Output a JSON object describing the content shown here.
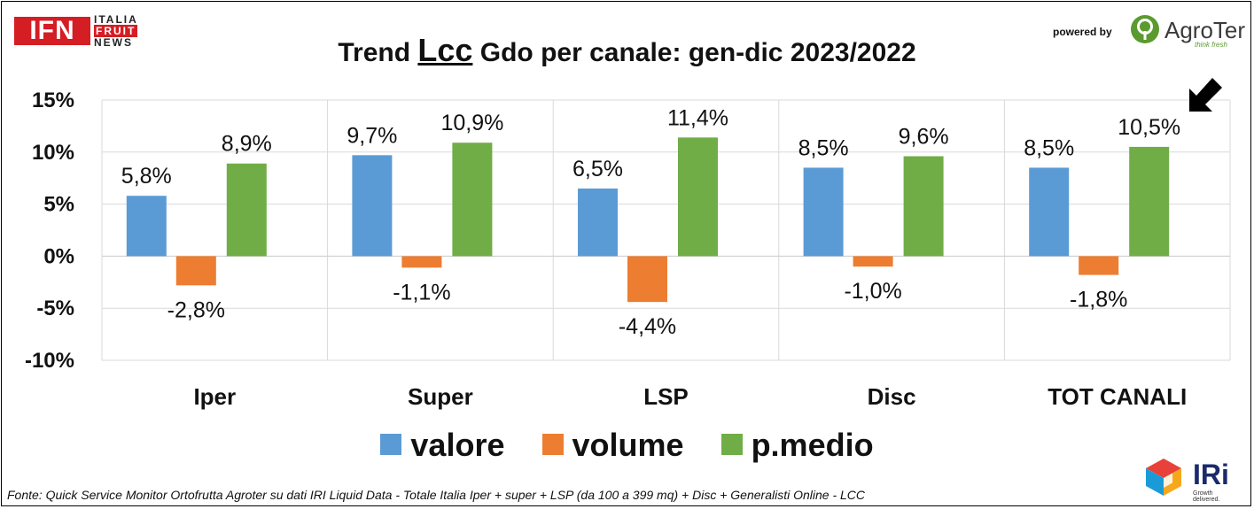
{
  "header": {
    "title_pre": "Trend ",
    "title_mid": "Lcc",
    "title_post": " Gdo per canale: gen-dic 2023/2022",
    "ifn_logo": "IFN",
    "ifn_words": [
      "ITALIA",
      "FRUIT",
      "NEWS"
    ],
    "powered_by": "powered by",
    "agroter_brand": "AgroTer",
    "agroter_tagline": "think fresh"
  },
  "footer": {
    "source": "Fonte: Quick Service Monitor Ortofrutta Agroter su dati IRI Liquid Data - Totale Italia Iper + super + LSP (da 100 a 399 mq) + Disc + Generalisti Online - LCC",
    "iri_brand": "IRi",
    "iri_tagline": "Growth delivered."
  },
  "colors": {
    "valore": "#5b9bd5",
    "volume": "#ed7d31",
    "p.medio": "#70ad47",
    "grid": "#d9d9d9",
    "arrow": "#000000"
  },
  "chart_data": {
    "type": "bar",
    "categories": [
      "Iper",
      "Super",
      "LSP",
      "Disc",
      "TOT CANALI"
    ],
    "series": [
      {
        "name": "valore",
        "values": [
          5.8,
          9.7,
          6.5,
          8.5,
          8.5
        ],
        "labels": [
          "5,8%",
          "9,7%",
          "6,5%",
          "8,5%",
          "8,5%"
        ]
      },
      {
        "name": "volume",
        "values": [
          -2.8,
          -1.1,
          -4.4,
          -1.0,
          -1.8
        ],
        "labels": [
          "-2,8%",
          "-1,1%",
          "-4,4%",
          "-1,0%",
          "-1,8%"
        ]
      },
      {
        "name": "p.medio",
        "values": [
          8.9,
          10.9,
          11.4,
          9.6,
          10.5
        ],
        "labels": [
          "8,9%",
          "10,9%",
          "11,4%",
          "9,6%",
          "10,5%"
        ]
      }
    ],
    "ylim": [
      -10,
      15
    ],
    "yticks": [
      15,
      10,
      5,
      0,
      -5,
      -10
    ],
    "ytick_labels": [
      "15%",
      "10%",
      "5%",
      "0%",
      "-5%",
      "-10%"
    ],
    "grid": true,
    "legend_position": "bottom",
    "annotation": "arrow pointing to TOT CANALI p.medio"
  }
}
